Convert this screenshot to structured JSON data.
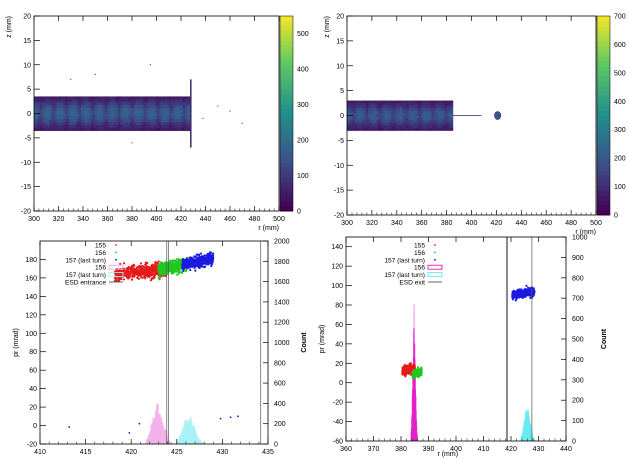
{
  "chart_data": [
    {
      "type": "heatmap",
      "xlabel": "r (mm)",
      "ylabel": "z (mm)",
      "xlim": [
        300,
        500
      ],
      "ylim": [
        -20,
        20
      ],
      "x_ticks": [
        300,
        320,
        340,
        360,
        380,
        400,
        420,
        440,
        460,
        480,
        500
      ],
      "y_ticks": [
        -20,
        -15,
        -10,
        -5,
        0,
        5,
        10,
        15,
        20
      ],
      "colorbar": {
        "min": 0,
        "max": 550,
        "ticks": [
          0,
          100,
          200,
          300,
          400,
          500
        ]
      },
      "band": {
        "r_start": 300,
        "r_end": 428,
        "z_half_width": 3.5,
        "tail_r": 428,
        "tail_z": [
          -7,
          7
        ]
      },
      "scatter_points": [
        [
          350,
          8
        ],
        [
          395,
          10
        ],
        [
          438,
          -1
        ],
        [
          450,
          1.5
        ],
        [
          460,
          0.5
        ],
        [
          380,
          -6
        ],
        [
          330,
          7
        ],
        [
          470,
          -2
        ]
      ]
    },
    {
      "type": "heatmap",
      "xlabel": "r (mm)",
      "ylabel": "z (mm)",
      "xlim": [
        300,
        500
      ],
      "ylim": [
        -20,
        20
      ],
      "x_ticks": [
        300,
        320,
        340,
        360,
        380,
        400,
        420,
        440,
        460,
        480,
        500
      ],
      "y_ticks": [
        -20,
        -15,
        -10,
        -5,
        0,
        5,
        10,
        15,
        20
      ],
      "colorbar": {
        "min": 0,
        "max": 700,
        "ticks": [
          0,
          100,
          200,
          300,
          400,
          500,
          600,
          700
        ]
      },
      "band": {
        "r_start": 300,
        "r_end": 385,
        "z_half_width": 3.0
      },
      "thin_line": {
        "r_start": 385,
        "r_end": 408,
        "z": 0
      },
      "blob": {
        "r": 421,
        "z": 0,
        "rx": 2.5,
        "rz": 0.6
      }
    },
    {
      "type": "scatter",
      "ylabel": "pr (mrad)",
      "y2label": "Count",
      "xlim": [
        410,
        435
      ],
      "ylim": [
        -20,
        200
      ],
      "y2lim": [
        0,
        2000
      ],
      "x_ticks": [
        410,
        415,
        420,
        425,
        430,
        435
      ],
      "y_ticks": [
        -20,
        0,
        20,
        40,
        60,
        80,
        100,
        120,
        140,
        160,
        180
      ],
      "y2_ticks": [
        0,
        200,
        400,
        600,
        800,
        1000,
        1200,
        1400,
        1600,
        1800,
        2000
      ],
      "legend": [
        "155",
        "156",
        "157 (last turn)",
        "156",
        "157 (last turn)",
        "ESD entrance"
      ],
      "clusters": [
        {
          "series": "155",
          "color": "#e51b1b",
          "x": [
            418.2,
            423.8
          ],
          "y": [
            155,
            178
          ]
        },
        {
          "series": "156",
          "color": "#22c722",
          "x": [
            423.0,
            426.2
          ],
          "y": [
            162,
            182
          ]
        },
        {
          "series": "157 (last turn)",
          "color": "#1a1ae0",
          "x": [
            425.6,
            429.0
          ],
          "y": [
            168,
            187
          ]
        }
      ],
      "histograms": [
        {
          "series": "156",
          "color": "#f2a8e6",
          "x": [
            421.6,
            424.6
          ],
          "peak_x": 422.9,
          "peak_count": 355
        },
        {
          "series": "157 (last turn)",
          "color": "#9bf0f4",
          "x": [
            424.9,
            428.0
          ],
          "peak_x": 426.3,
          "peak_count": 255
        }
      ],
      "vertical_lines": [
        423.9,
        424.1,
        434.2
      ],
      "isolated_points": [
        [
          413.2,
          -1.5
        ],
        [
          419.8,
          -8
        ],
        [
          420.9,
          2
        ],
        [
          429.8,
          7.5
        ],
        [
          430.9,
          9
        ],
        [
          431.7,
          10
        ]
      ]
    },
    {
      "type": "scatter",
      "ylabel": "pr (mrad)",
      "y2label": "Count",
      "xlabel": "r (mm)",
      "xlim": [
        360,
        440
      ],
      "ylim": [
        -60,
        150
      ],
      "y2lim": [
        0,
        1000
      ],
      "x_ticks": [
        360,
        370,
        380,
        390,
        400,
        410,
        420,
        430,
        440
      ],
      "y_ticks": [
        -60,
        -40,
        -20,
        0,
        20,
        40,
        60,
        80,
        100,
        120,
        140
      ],
      "y2_ticks": [
        0,
        100,
        200,
        300,
        400,
        500,
        600,
        700,
        800,
        900,
        1000
      ],
      "legend": [
        "155",
        "156",
        "157 (last turn)",
        "156",
        "157 (last turn)",
        "ESD exit"
      ],
      "clusters": [
        {
          "series": "155",
          "color": "#e51b1b",
          "x": [
            380.5,
            385.0
          ],
          "y": [
            8,
            20
          ]
        },
        {
          "series": "156",
          "color": "#22c722",
          "x": [
            384.2,
            387.5
          ],
          "y": [
            5,
            15
          ]
        },
        {
          "series": "157 (last turn)",
          "color": "#1a1ae0",
          "x": [
            420.5,
            428.5
          ],
          "y": [
            86,
            98
          ]
        }
      ],
      "histograms": [
        {
          "series": "156",
          "color": "#e016c8",
          "x": [
            383.5,
            386.0
          ],
          "peak_x": 384.7,
          "peak_count": 590
        },
        {
          "series": "157 (last turn)",
          "color": "#5be8ee",
          "x": [
            423.5,
            429.0
          ],
          "peak_x": 425.8,
          "peak_count": 155
        }
      ],
      "vertical_lines": [
        418.3,
        418.7,
        427.6
      ]
    }
  ]
}
